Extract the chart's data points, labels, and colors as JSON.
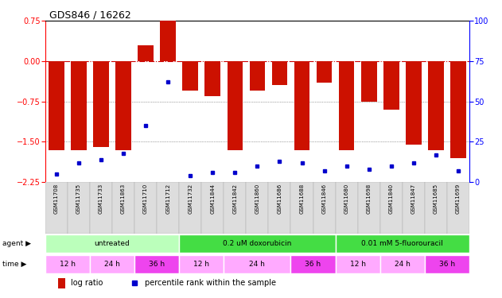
{
  "title": "GDS846 / 16262",
  "samples": [
    "GSM11708",
    "GSM11735",
    "GSM11733",
    "GSM11863",
    "GSM11710",
    "GSM11712",
    "GSM11732",
    "GSM11844",
    "GSM11842",
    "GSM11860",
    "GSM11686",
    "GSM11688",
    "GSM11846",
    "GSM11680",
    "GSM11698",
    "GSM11840",
    "GSM11847",
    "GSM11685",
    "GSM11699"
  ],
  "log_ratio": [
    -1.65,
    -1.65,
    -1.6,
    -1.65,
    0.3,
    0.75,
    -0.55,
    -0.65,
    -1.65,
    -0.55,
    -0.45,
    -1.65,
    -0.4,
    -1.65,
    -0.75,
    -0.9,
    -1.55,
    -1.65,
    -1.8
  ],
  "pct_rank": [
    5,
    12,
    14,
    18,
    35,
    62,
    4,
    6,
    6,
    10,
    13,
    12,
    7,
    10,
    8,
    10,
    12,
    17,
    7
  ],
  "agent_groups": [
    {
      "label": "untreated",
      "start": 0,
      "end": 5,
      "color": "#bbffbb"
    },
    {
      "label": "0.2 uM doxorubicin",
      "start": 6,
      "end": 12,
      "color": "#44dd44"
    },
    {
      "label": "0.01 mM 5-fluorouracil",
      "start": 13,
      "end": 18,
      "color": "#44dd44"
    }
  ],
  "time_groups": [
    {
      "label": "12 h",
      "start": 0,
      "end": 1,
      "color": "#ffaaff"
    },
    {
      "label": "24 h",
      "start": 2,
      "end": 3,
      "color": "#ffaaff"
    },
    {
      "label": "36 h",
      "start": 4,
      "end": 5,
      "color": "#ee44ee"
    },
    {
      "label": "12 h",
      "start": 6,
      "end": 7,
      "color": "#ffaaff"
    },
    {
      "label": "24 h",
      "start": 8,
      "end": 10,
      "color": "#ffaaff"
    },
    {
      "label": "36 h",
      "start": 11,
      "end": 12,
      "color": "#ee44ee"
    },
    {
      "label": "12 h",
      "start": 13,
      "end": 14,
      "color": "#ffaaff"
    },
    {
      "label": "24 h",
      "start": 15,
      "end": 16,
      "color": "#ffaaff"
    },
    {
      "label": "36 h",
      "start": 17,
      "end": 18,
      "color": "#ee44ee"
    }
  ],
  "ylim_left": [
    -2.25,
    0.75
  ],
  "ylim_right": [
    0,
    100
  ],
  "yticks_left": [
    0.75,
    0,
    -0.75,
    -1.5,
    -2.25
  ],
  "yticks_right": [
    100,
    75,
    50,
    25,
    0
  ],
  "bar_color": "#cc1100",
  "dot_color": "#0000cc",
  "hline_color": "#cc0000",
  "dotted_line_color": "#555555",
  "bg_color": "#ffffff",
  "sample_bg": "#cccccc",
  "title_fontsize": 9,
  "tick_fontsize": 7,
  "label_fontsize": 6,
  "annot_fontsize": 6.5
}
